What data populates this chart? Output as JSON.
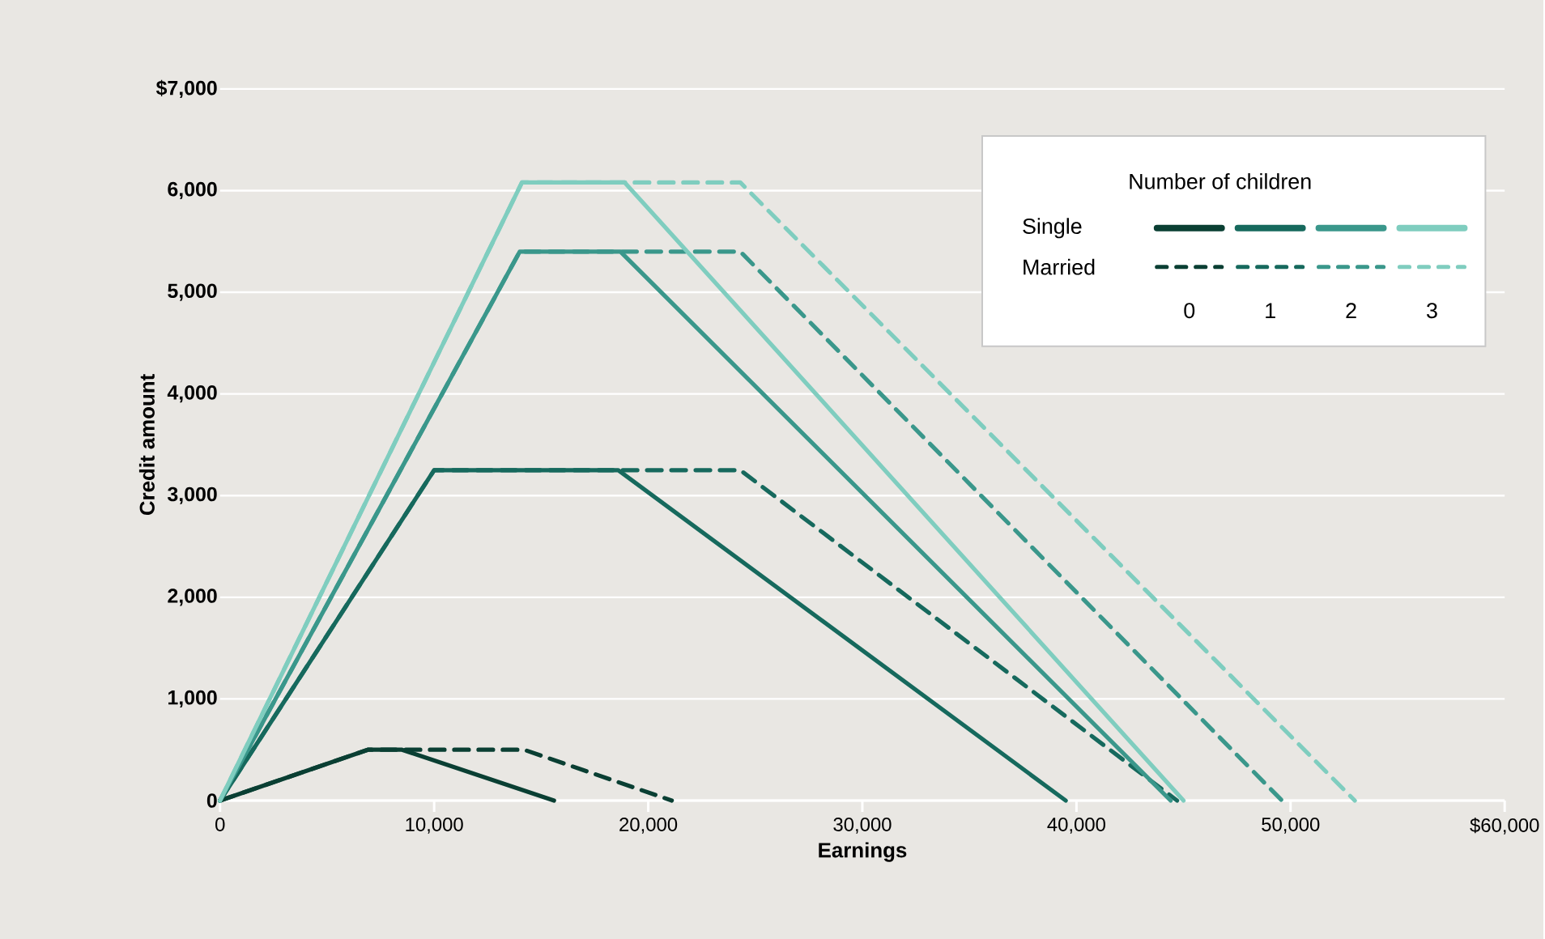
{
  "chart_data": {
    "type": "line",
    "xlabel": "Earnings",
    "ylabel": "Credit amount",
    "legend_title": "Number of children",
    "grid": "y",
    "marker": "none",
    "annotations": [
      "Single",
      "Married",
      "0",
      "1",
      "2",
      "3"
    ],
    "xlim": [
      0,
      60000
    ],
    "ylim": [
      0,
      7000
    ],
    "xticks": [
      0,
      {
        "value": 10000,
        "label": "10,000"
      },
      {
        "value": 20000,
        "label": "20,000"
      },
      {
        "value": 30000,
        "label": "30,000"
      },
      {
        "value": 40000,
        "label": "40,000"
      },
      {
        "value": 50000,
        "label": "50,000"
      },
      {
        "value": 60000,
        "label": "$60,000"
      }
    ],
    "yticks": [
      0,
      {
        "value": 1000,
        "label": "1,000"
      },
      {
        "value": 2000,
        "label": "2,000"
      },
      {
        "value": 3000,
        "label": "3,000"
      },
      {
        "value": 4000,
        "label": "4,000"
      },
      {
        "value": 5000,
        "label": "5,000"
      },
      {
        "value": 6000,
        "label": "6,000"
      },
      {
        "value": 7000,
        "label": "$7,000"
      }
    ],
    "series": [
      {
        "color": "#0a3f33",
        "line_style": "solid",
        "x": [
          0,
          6900,
          8500,
          15600
        ],
        "values": [
          0,
          500,
          500,
          0
        ]
      },
      {
        "color": "#0a3f33",
        "line_style": "dashed",
        "x": [
          0,
          6900,
          14200,
          21100
        ],
        "values": [
          0,
          500,
          500,
          0
        ]
      },
      {
        "color": "#16695d",
        "line_style": "solid",
        "x": [
          0,
          10000,
          18600,
          39500
        ],
        "values": [
          0,
          3250,
          3250,
          0
        ]
      },
      {
        "color": "#16695d",
        "line_style": "dashed",
        "x": [
          0,
          10000,
          24300,
          44700
        ],
        "values": [
          0,
          3250,
          3250,
          0
        ]
      },
      {
        "color": "#3a978b",
        "line_style": "solid",
        "x": [
          0,
          14000,
          18700,
          44400
        ],
        "values": [
          0,
          5400,
          5400,
          0
        ]
      },
      {
        "color": "#3a978b",
        "line_style": "dashed",
        "x": [
          0,
          14000,
          24300,
          49600
        ],
        "values": [
          0,
          5400,
          5400,
          0
        ]
      },
      {
        "color": "#7fcdbf",
        "line_style": "solid",
        "x": [
          0,
          14100,
          18900,
          45000
        ],
        "values": [
          0,
          6080,
          6080,
          0
        ]
      },
      {
        "color": "#7fcdbf",
        "line_style": "dashed",
        "x": [
          0,
          14100,
          24300,
          53000
        ],
        "values": [
          0,
          6080,
          6080,
          0
        ]
      }
    ]
  }
}
